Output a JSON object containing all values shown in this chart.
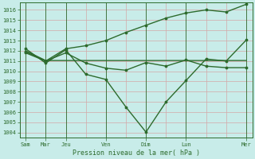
{
  "background_color": "#c8ece9",
  "grid_color": "#d4a8a8",
  "line_color": "#2d6b2d",
  "title": "Pression niveau de la mer( hPa )",
  "ylim": [
    1003.5,
    1016.7
  ],
  "yticks": [
    1004,
    1005,
    1006,
    1007,
    1008,
    1009,
    1010,
    1011,
    1012,
    1013,
    1014,
    1015,
    1016
  ],
  "x_positions": [
    0,
    1,
    2,
    3,
    4,
    5,
    6,
    7,
    8,
    9,
    10,
    11
  ],
  "x_sep_pos": [
    0,
    1,
    2,
    4,
    6,
    8,
    11
  ],
  "x_sep_labels": [
    "Sam",
    "Mar",
    "Jeu",
    "Ven",
    "Dim",
    "Lun",
    "Mer"
  ],
  "line1_y": [
    1012.0,
    1011.05,
    1011.05,
    1011.05,
    1011.05,
    1011.05,
    1011.05,
    1011.05,
    1011.05,
    1011.05,
    1011.05,
    1011.05
  ],
  "line2_y": [
    1011.8,
    1011.0,
    1011.8,
    1010.8,
    1010.3,
    1010.1,
    1010.85,
    1010.5,
    1011.1,
    1010.5,
    1010.35,
    1010.35
  ],
  "line3_y": [
    1012.2,
    1010.8,
    1012.1,
    1009.7,
    1009.2,
    1006.5,
    1004.05,
    1007.0,
    1009.1,
    1011.2,
    1011.0,
    1013.05
  ],
  "line4_y": [
    1011.9,
    1011.0,
    1012.2,
    1012.5,
    1013.0,
    1013.8,
    1014.5,
    1015.2,
    1015.7,
    1016.0,
    1015.8,
    1016.55
  ]
}
